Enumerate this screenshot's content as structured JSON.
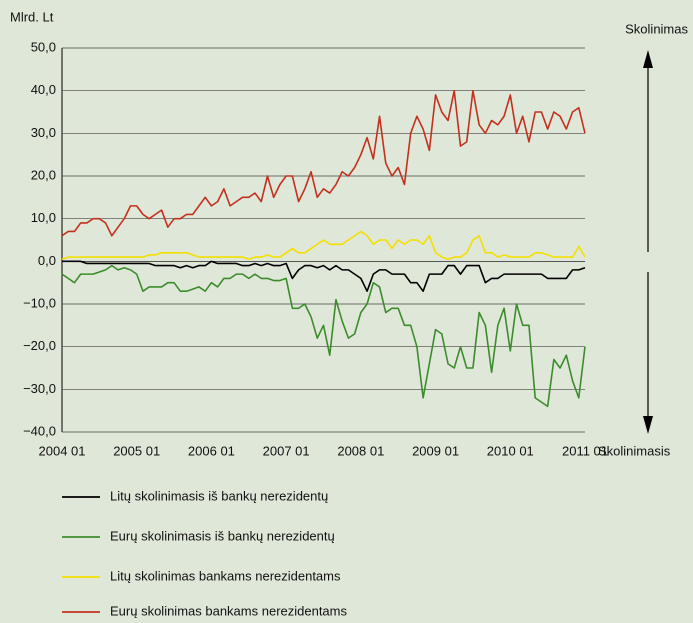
{
  "chart_data": {
    "type": "line",
    "y_label": "Mlrd. Lt",
    "annotations": [
      "Skolinimas",
      "Skolinimasis"
    ],
    "categories": [
      "2004 01",
      null,
      null,
      null,
      null,
      null,
      null,
      null,
      null,
      null,
      null,
      null,
      "2005 01",
      null,
      null,
      null,
      null,
      null,
      null,
      null,
      null,
      null,
      null,
      null,
      "2006 01",
      null,
      null,
      null,
      null,
      null,
      null,
      null,
      null,
      null,
      null,
      null,
      "2007 01",
      null,
      null,
      null,
      null,
      null,
      null,
      null,
      null,
      null,
      null,
      null,
      "2008 01",
      null,
      null,
      null,
      null,
      null,
      null,
      null,
      null,
      null,
      null,
      null,
      "2009 01",
      null,
      null,
      null,
      null,
      null,
      null,
      null,
      null,
      null,
      null,
      null,
      "2010 01",
      null,
      null,
      null,
      null,
      null,
      null,
      null,
      null,
      null,
      null,
      null,
      "2011 01"
    ],
    "ylim": [
      -40,
      50
    ],
    "yticks": [
      {
        "value": -40,
        "label": "−40,0"
      },
      {
        "value": -30,
        "label": "−30,0"
      },
      {
        "value": -20,
        "label": "−20,0"
      },
      {
        "value": -10,
        "label": "−10,0"
      },
      {
        "value": 0,
        "label": "0,0"
      },
      {
        "value": 10,
        "label": "10,0"
      },
      {
        "value": 20,
        "label": "20,0"
      },
      {
        "value": 30,
        "label": "30,0"
      },
      {
        "value": 40,
        "label": "40,0"
      },
      {
        "value": 50,
        "label": "50,0"
      }
    ],
    "grid": true,
    "series": [
      {
        "name": "Litų skolinimasis iš bankų nerezidentų",
        "color": "#000000",
        "values": [
          0,
          0,
          0,
          0,
          -0.5,
          -0.5,
          -0.5,
          -0.5,
          -0.5,
          -0.5,
          -0.5,
          -0.5,
          -0.5,
          -0.5,
          -0.5,
          -1,
          -1,
          -1,
          -1,
          -1.5,
          -1,
          -1.5,
          -1,
          -1,
          0,
          -0.5,
          -0.5,
          -0.5,
          -0.5,
          -1,
          -1,
          -0.5,
          -1,
          -0.5,
          -1,
          -1,
          -0.5,
          -4,
          -2,
          -1,
          -1,
          -1.5,
          -1,
          -2,
          -1,
          -2,
          -2,
          -3,
          -4,
          -7,
          -3,
          -2,
          -2,
          -3,
          -3,
          -3,
          -5,
          -5,
          -7,
          -3,
          -3,
          -3,
          -1,
          -1,
          -3,
          -1,
          -1,
          -1,
          -5,
          -4,
          -4,
          -3,
          -3,
          -3,
          -3,
          -3,
          -3,
          -3,
          -4,
          -4,
          -4,
          -4,
          -2,
          -2,
          -1.5
        ]
      },
      {
        "name": "Eurų skolinimasis iš bankų nerezidentų",
        "color": "#3c8c2c",
        "values": [
          -3,
          -4,
          -5,
          -3,
          -3,
          -3,
          -2.5,
          -2,
          -1,
          -2,
          -1.5,
          -2,
          -3,
          -7,
          -6,
          -6,
          -6,
          -5,
          -5,
          -7,
          -7,
          -6.5,
          -6,
          -7,
          -5,
          -6,
          -4,
          -4,
          -3,
          -3,
          -4,
          -3,
          -4,
          -4,
          -4.5,
          -4.5,
          -4,
          -11,
          -11,
          -10,
          -13,
          -18,
          -15,
          -22,
          -9,
          -14,
          -18,
          -17,
          -12,
          -10,
          -5,
          -6,
          -12,
          -11,
          -11,
          -15,
          -15,
          -20,
          -32,
          -24,
          -16,
          -17,
          -24,
          -25,
          -20,
          -25,
          -25,
          -12,
          -15,
          -26,
          -15,
          -11,
          -21,
          -10,
          -15,
          -15,
          -32,
          -33,
          -34,
          -23,
          -25,
          -22,
          -28,
          -32,
          -20
        ]
      },
      {
        "name": "Litų skolinimas bankams nerezidentams",
        "color": "#f4df00",
        "values": [
          0.5,
          1,
          1,
          1,
          1,
          1,
          1,
          1,
          1,
          1,
          1,
          1,
          1,
          1,
          1.5,
          1.5,
          2,
          2,
          2,
          2,
          2,
          1.5,
          1,
          1,
          1,
          1,
          1,
          1,
          1,
          1,
          0.5,
          1,
          1,
          1.5,
          1,
          1,
          2,
          3,
          2,
          2,
          3,
          4,
          5,
          4,
          4,
          4,
          5,
          6,
          7,
          6,
          4,
          5,
          5,
          3,
          5,
          4,
          5,
          5,
          4,
          6,
          2,
          1,
          0.5,
          1,
          1,
          2,
          5,
          6,
          2,
          2,
          1,
          1.5,
          1,
          1,
          1,
          1,
          2,
          2,
          1.5,
          1,
          1,
          1,
          1,
          3.5,
          1
        ]
      },
      {
        "name": "Eurų skolinimas bankams nerezidentams",
        "color": "#c3311e",
        "values": [
          6,
          7,
          7,
          9,
          9,
          10,
          10,
          9,
          6,
          8,
          10,
          13,
          13,
          11,
          10,
          11,
          12,
          8,
          10,
          10,
          11,
          11,
          13,
          15,
          13,
          14,
          17,
          13,
          14,
          15,
          15,
          16,
          14,
          20,
          15,
          18,
          20,
          20,
          14,
          17,
          21,
          15,
          17,
          16,
          18,
          21,
          20,
          22,
          25,
          29,
          24,
          34,
          23,
          20,
          22,
          18,
          30,
          34,
          31,
          26,
          39,
          35,
          33,
          40,
          27,
          28,
          40,
          32,
          30,
          33,
          32,
          34,
          39,
          30,
          34,
          28,
          35,
          35,
          31,
          35,
          34,
          31,
          35,
          36,
          30
        ]
      }
    ]
  }
}
